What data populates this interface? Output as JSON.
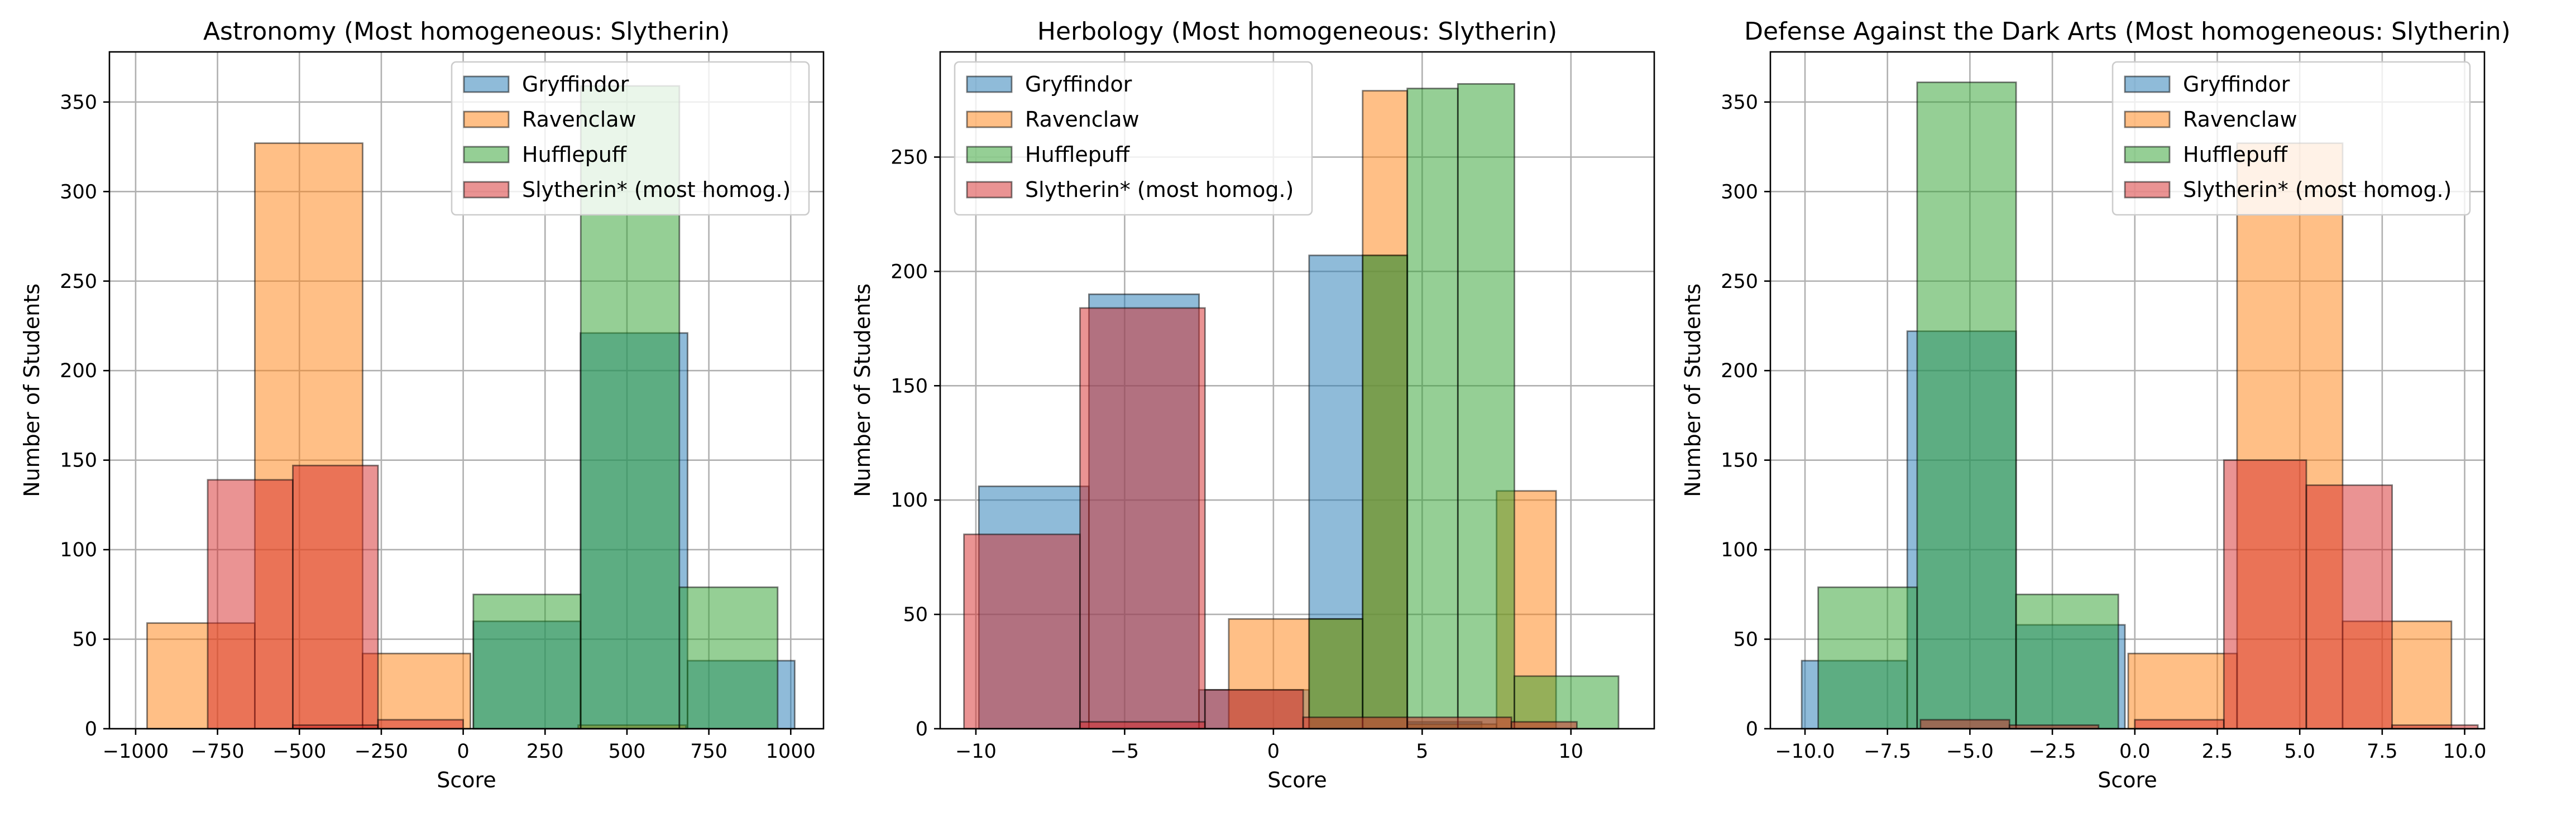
{
  "colors": {
    "Gryffindor": "#1f77b4",
    "Ravenclaw": "#ff7f0e",
    "Hufflepuff": "#2ca02c",
    "Slytherin": "#d62728",
    "grid": "#b0b0b0"
  },
  "chart_data": [
    {
      "type": "histogram",
      "title": "Astronomy (Most homogeneous: Slytherin)",
      "xlabel": "Score",
      "ylabel": "Number of Students",
      "xlim": [
        -1080,
        1100
      ],
      "ylim": [
        0,
        378
      ],
      "xticks": [
        -1000,
        -750,
        -500,
        -250,
        0,
        250,
        500,
        750,
        1000
      ],
      "xtick_labels": [
        "−1000",
        "−750",
        "−500",
        "−250",
        "0",
        "250",
        "500",
        "750",
        "1000"
      ],
      "yticks": [
        0,
        50,
        100,
        150,
        200,
        250,
        300,
        350
      ],
      "ytick_labels": [
        "0",
        "50",
        "100",
        "150",
        "200",
        "250",
        "300",
        "350"
      ],
      "grid": true,
      "legend_position": "top-right",
      "series": [
        {
          "name": "Gryffindor",
          "color_key": "Gryffindor",
          "bins": [
            [
              31,
              358,
              60
            ],
            [
              358,
              685,
              221
            ],
            [
              685,
              1012,
              38
            ]
          ]
        },
        {
          "name": "Ravenclaw",
          "color_key": "Ravenclaw",
          "bins": [
            [
              -965,
              -636,
              59
            ],
            [
              -636,
              -307,
              327
            ],
            [
              -307,
              22,
              42
            ],
            [
              351,
              680,
              2
            ]
          ]
        },
        {
          "name": "Hufflepuff",
          "color_key": "Hufflepuff",
          "bins": [
            [
              31,
              359,
              75
            ],
            [
              359,
              660,
              359
            ],
            [
              660,
              960,
              79
            ]
          ]
        },
        {
          "name": "Slytherin* (most homog.)",
          "color_key": "Slytherin",
          "bins": [
            [
              -780,
              -520,
              139
            ],
            [
              -520,
              -260,
              147
            ],
            [
              -520,
              -260,
              2
            ],
            [
              -260,
              0,
              5
            ]
          ]
        }
      ]
    },
    {
      "type": "histogram",
      "title": "Herbology (Most homogeneous: Slytherin)",
      "xlabel": "Score",
      "ylabel": "Number of Students",
      "xlim": [
        -11.2,
        12.8
      ],
      "ylim": [
        0,
        296
      ],
      "xticks": [
        -10,
        -5,
        0,
        5,
        10
      ],
      "xtick_labels": [
        "−10",
        "−5",
        "0",
        "5",
        "10"
      ],
      "yticks": [
        0,
        50,
        100,
        150,
        200,
        250
      ],
      "ytick_labels": [
        "0",
        "50",
        "100",
        "150",
        "200",
        "250"
      ],
      "grid": true,
      "legend_position": "top-left",
      "series": [
        {
          "name": "Gryffindor",
          "color_key": "Gryffindor",
          "bins": [
            [
              -9.9,
              -6.2,
              106
            ],
            [
              -6.2,
              -2.5,
              190
            ],
            [
              -2.5,
              1.2,
              17
            ],
            [
              1.2,
              4.5,
              207
            ],
            [
              4.5,
              7.0,
              3
            ]
          ]
        },
        {
          "name": "Ravenclaw",
          "color_key": "Ravenclaw",
          "bins": [
            [
              -1.5,
              3.0,
              48
            ],
            [
              3.0,
              4.5,
              279
            ],
            [
              4.5,
              7.5,
              2
            ],
            [
              7.5,
              9.5,
              104
            ]
          ]
        },
        {
          "name": "Hufflepuff",
          "color_key": "Hufflepuff",
          "bins": [
            [
              1.2,
              3.0,
              48
            ],
            [
              3.0,
              4.5,
              207
            ],
            [
              4.5,
              6.2,
              280
            ],
            [
              6.2,
              8.1,
              282
            ],
            [
              8.1,
              11.6,
              23
            ]
          ]
        },
        {
          "name": "Slytherin* (most homog.)",
          "color_key": "Slytherin",
          "bins": [
            [
              -10.4,
              -6.5,
              85
            ],
            [
              -6.5,
              -2.3,
              184
            ],
            [
              -6.5,
              -2.3,
              3
            ],
            [
              -2.3,
              1.0,
              17
            ],
            [
              1.0,
              4.5,
              5
            ],
            [
              4.5,
              8.0,
              5
            ],
            [
              8.0,
              10.2,
              3
            ]
          ]
        }
      ]
    },
    {
      "type": "histogram",
      "title": "Defense Against the Dark Arts (Most homogeneous: Slytherin)",
      "xlabel": "Score",
      "ylabel": "Number of Students",
      "xlim": [
        -11.05,
        10.6
      ],
      "ylim": [
        0,
        378
      ],
      "xticks": [
        -10,
        -7.5,
        -5,
        -2.5,
        0,
        2.5,
        5,
        7.5,
        10
      ],
      "xtick_labels": [
        "−10.0",
        "−7.5",
        "−5.0",
        "−2.5",
        "0.0",
        "2.5",
        "5.0",
        "7.5",
        "10.0"
      ],
      "yticks": [
        0,
        50,
        100,
        150,
        200,
        250,
        300,
        350
      ],
      "ytick_labels": [
        "0",
        "50",
        "100",
        "150",
        "200",
        "250",
        "300",
        "350"
      ],
      "grid": true,
      "legend_position": "top-right",
      "series": [
        {
          "name": "Gryffindor",
          "color_key": "Gryffindor",
          "bins": [
            [
              -10.1,
              -6.9,
              38
            ],
            [
              -6.9,
              -3.6,
              222
            ],
            [
              -3.6,
              -0.3,
              58
            ]
          ]
        },
        {
          "name": "Ravenclaw",
          "color_key": "Ravenclaw",
          "bins": [
            [
              -0.2,
              3.1,
              42
            ],
            [
              3.1,
              6.3,
              327
            ],
            [
              6.3,
              9.6,
              60
            ]
          ]
        },
        {
          "name": "Hufflepuff",
          "color_key": "Hufflepuff",
          "bins": [
            [
              -9.6,
              -6.6,
              79
            ],
            [
              -6.6,
              -3.6,
              361
            ],
            [
              -3.6,
              -0.5,
              75
            ]
          ]
        },
        {
          "name": "Slytherin* (most homog.)",
          "color_key": "Slytherin",
          "bins": [
            [
              -6.5,
              -3.8,
              5
            ],
            [
              -3.8,
              -1.1,
              2
            ],
            [
              0,
              2.7,
              5
            ],
            [
              2.7,
              5.2,
              150
            ],
            [
              5.2,
              7.8,
              136
            ],
            [
              7.8,
              10.4,
              2
            ]
          ]
        }
      ]
    }
  ]
}
